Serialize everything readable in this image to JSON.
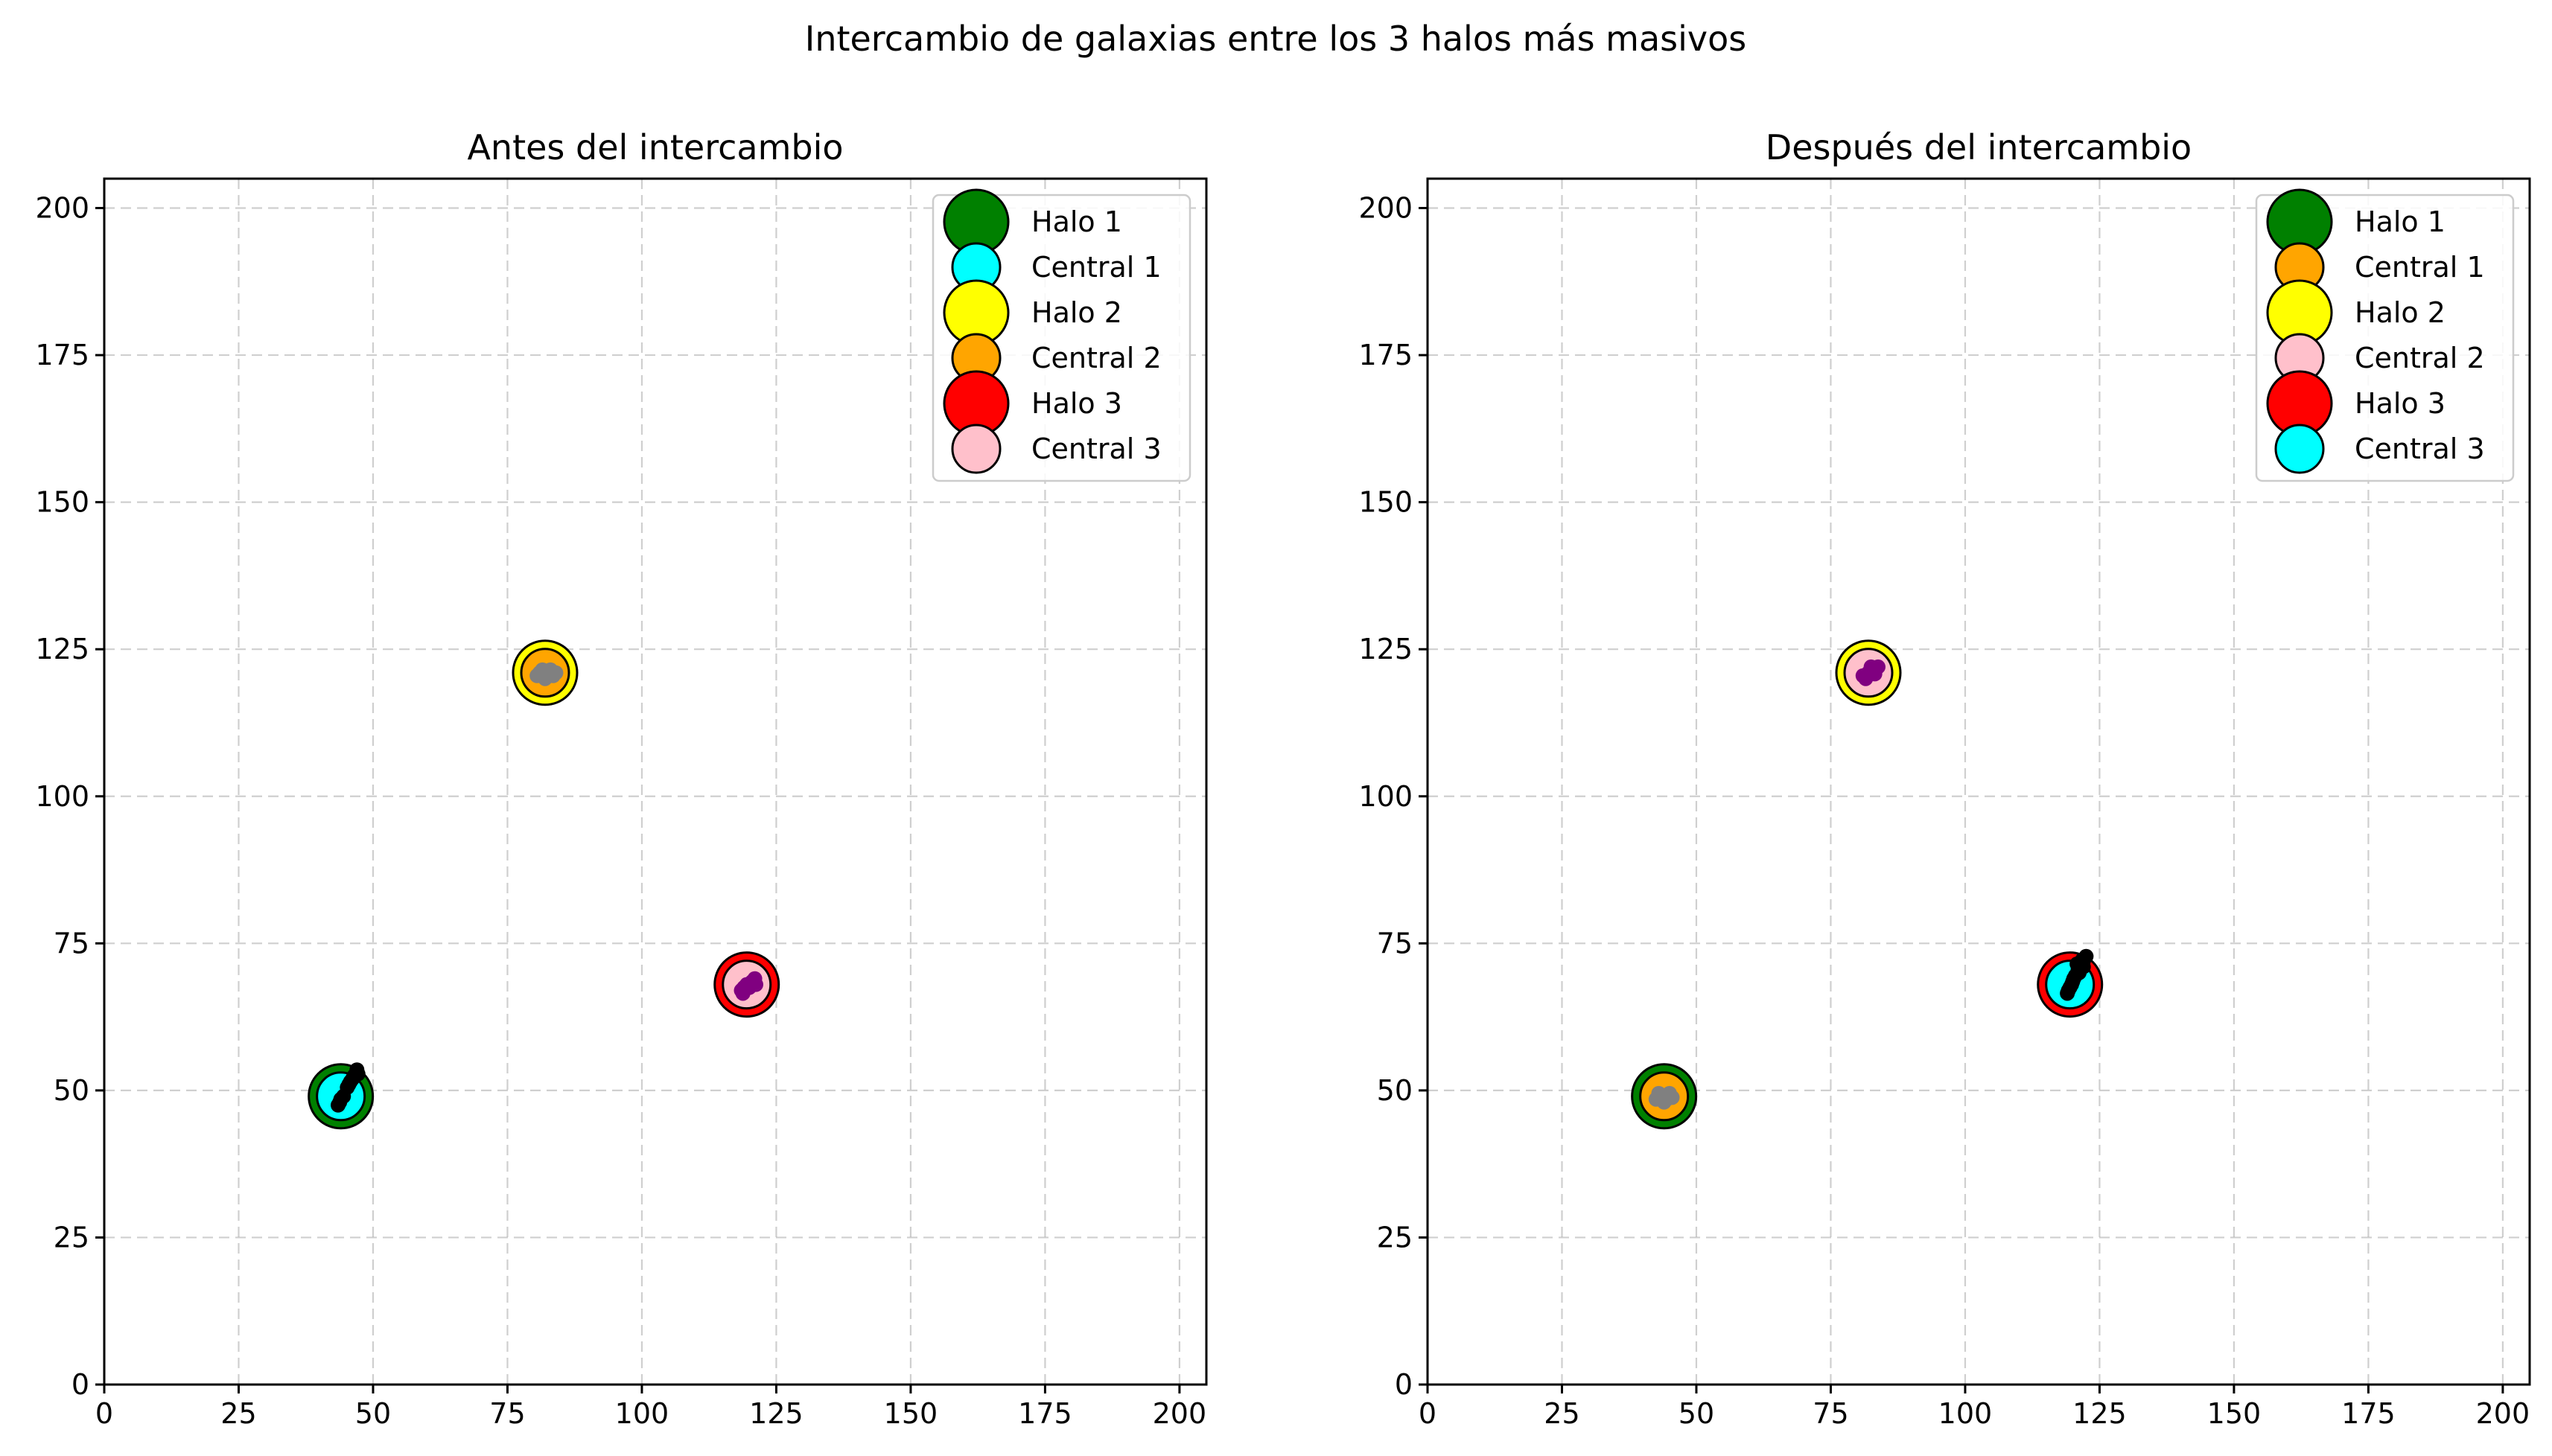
{
  "figure": {
    "title": "Intercambio de galaxias entre los 3 halos más masivos"
  },
  "chart_data": [
    {
      "type": "scatter",
      "title": "Antes del intercambio",
      "xlabel": "",
      "ylabel": "",
      "xlim": [
        0,
        205
      ],
      "ylim": [
        0,
        205
      ],
      "xticks": [
        0,
        25,
        50,
        75,
        100,
        125,
        150,
        175,
        200
      ],
      "yticks": [
        0,
        25,
        50,
        75,
        100,
        125,
        150,
        175,
        200
      ],
      "grid": true,
      "legend_position": "top-right",
      "series": [
        {
          "name": "Halo 1",
          "role": "halo",
          "color": "#008000",
          "points": [
            [
              44,
              49
            ]
          ]
        },
        {
          "name": "Central 1",
          "role": "central",
          "color": "#00ffff",
          "points": [
            [
              44,
              49
            ]
          ]
        },
        {
          "name": "Halo 2",
          "role": "halo",
          "color": "#ffff00",
          "points": [
            [
              82,
              121
            ]
          ]
        },
        {
          "name": "Central 2",
          "role": "central",
          "color": "#ffa500",
          "points": [
            [
              82,
              121
            ]
          ]
        },
        {
          "name": "Halo 3",
          "role": "halo",
          "color": "#ff0000",
          "points": [
            [
              119.5,
              68
            ]
          ]
        },
        {
          "name": "Central 3",
          "role": "central",
          "color": "#ffc0cb",
          "points": [
            [
              119.5,
              68
            ]
          ]
        }
      ],
      "satellites": [
        {
          "color": "#000000",
          "points": [
            [
              43.5,
              47.5
            ],
            [
              44.5,
              49
            ],
            [
              45.2,
              50.5
            ],
            [
              45.8,
              51.5
            ],
            [
              46.5,
              52.5
            ],
            [
              47,
              53.5
            ],
            [
              44,
              48.5
            ],
            [
              45.5,
              51
            ],
            [
              46.2,
              52
            ],
            [
              43.8,
              48
            ],
            [
              47.2,
              52.8
            ]
          ]
        },
        {
          "color": "#808080",
          "points": [
            [
              80.5,
              120.5
            ],
            [
              81.5,
              121.5
            ],
            [
              82.5,
              121
            ],
            [
              83.5,
              120.5
            ],
            [
              82,
              120
            ],
            [
              81,
              121
            ],
            [
              83,
              121.5
            ],
            [
              84,
              121
            ]
          ]
        },
        {
          "color": "#800080",
          "points": [
            [
              118.5,
              67
            ],
            [
              119.5,
              68
            ],
            [
              120.5,
              68.5
            ],
            [
              121,
              69
            ],
            [
              119,
              67.5
            ],
            [
              120,
              67.5
            ],
            [
              118.8,
              66.5
            ],
            [
              121.2,
              68
            ]
          ]
        }
      ]
    },
    {
      "type": "scatter",
      "title": "Después del intercambio",
      "xlabel": "",
      "ylabel": "",
      "xlim": [
        0,
        205
      ],
      "ylim": [
        0,
        205
      ],
      "xticks": [
        0,
        25,
        50,
        75,
        100,
        125,
        150,
        175,
        200
      ],
      "yticks": [
        0,
        25,
        50,
        75,
        100,
        125,
        150,
        175,
        200
      ],
      "grid": true,
      "legend_position": "top-right",
      "series": [
        {
          "name": "Halo 1",
          "role": "halo",
          "color": "#008000",
          "points": [
            [
              44,
              49
            ]
          ]
        },
        {
          "name": "Central 1",
          "role": "central",
          "color": "#ffa500",
          "points": [
            [
              44,
              49
            ]
          ]
        },
        {
          "name": "Halo 2",
          "role": "halo",
          "color": "#ffff00",
          "points": [
            [
              82,
              121
            ]
          ]
        },
        {
          "name": "Central 2",
          "role": "central",
          "color": "#ffc0cb",
          "points": [
            [
              82,
              121
            ]
          ]
        },
        {
          "name": "Halo 3",
          "role": "halo",
          "color": "#ff0000",
          "points": [
            [
              119.5,
              68
            ]
          ]
        },
        {
          "name": "Central 3",
          "role": "central",
          "color": "#00ffff",
          "points": [
            [
              119.5,
              68
            ]
          ]
        }
      ],
      "satellites": [
        {
          "color": "#808080",
          "points": [
            [
              42.5,
              48.5
            ],
            [
              43.5,
              49
            ],
            [
              44.5,
              48.5
            ],
            [
              45,
              49.5
            ],
            [
              43,
              49.5
            ],
            [
              44,
              48
            ],
            [
              45.5,
              48.8
            ]
          ]
        },
        {
          "color": "#800080",
          "points": [
            [
              81,
              120.5
            ],
            [
              82,
              121
            ],
            [
              83,
              121.5
            ],
            [
              83.8,
              122
            ],
            [
              81.5,
              120
            ],
            [
              82.5,
              122
            ],
            [
              83.2,
              120.8
            ]
          ]
        },
        {
          "color": "#000000",
          "points": [
            [
              119,
              66.5
            ],
            [
              119.5,
              67.5
            ],
            [
              120,
              68.5
            ],
            [
              120.5,
              69.5
            ],
            [
              121,
              70.5
            ],
            [
              121.5,
              71.2
            ],
            [
              122,
              72
            ],
            [
              122.5,
              72.8
            ],
            [
              119.2,
              67
            ],
            [
              120.2,
              69
            ],
            [
              121.2,
              70
            ],
            [
              122,
              71
            ],
            [
              120.8,
              71.5
            ],
            [
              119.8,
              68
            ],
            [
              121.8,
              72.2
            ]
          ]
        }
      ]
    }
  ]
}
